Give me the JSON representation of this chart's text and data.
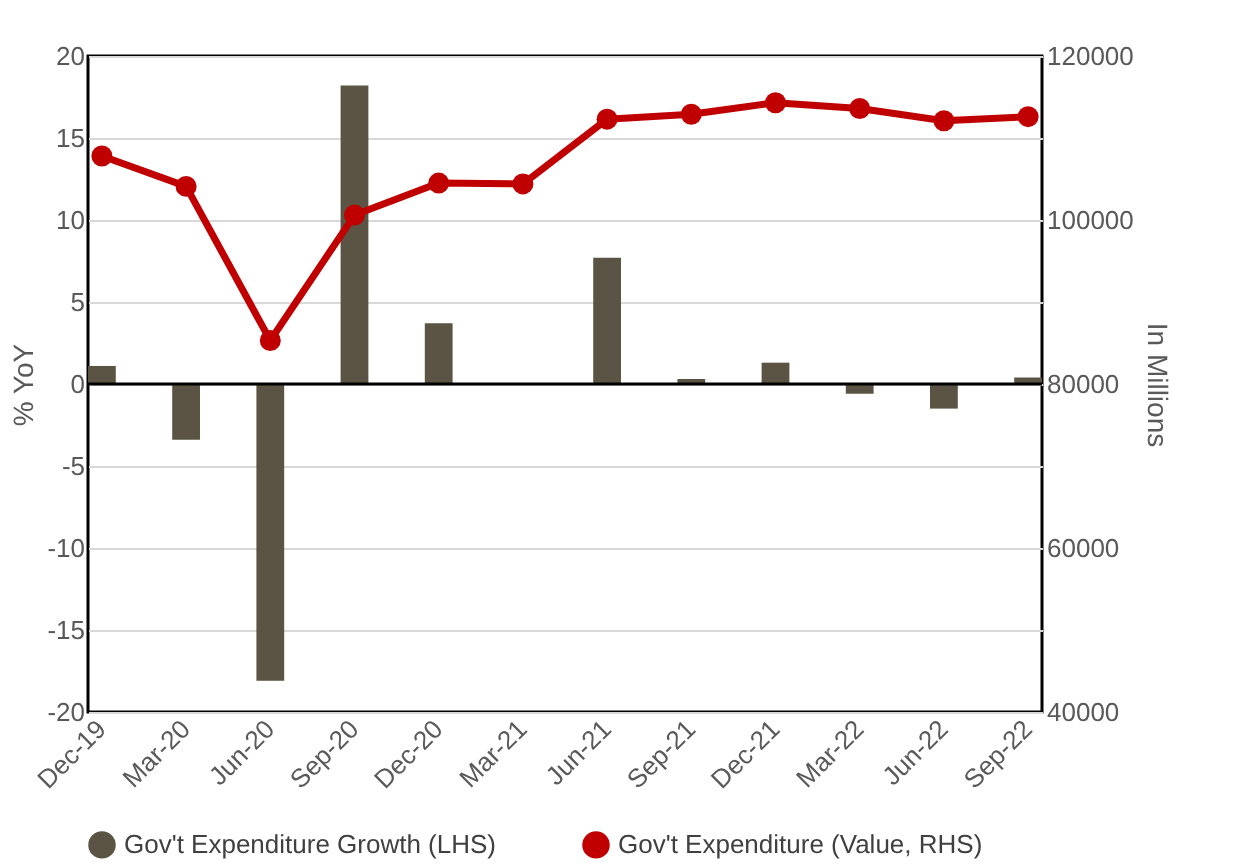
{
  "chart_data": {
    "type": "bar",
    "categories": [
      "Dec-19",
      "Mar-20",
      "Jun-20",
      "Sep-20",
      "Dec-20",
      "Mar-21",
      "Jun-21",
      "Sep-21",
      "Dec-21",
      "Mar-22",
      "Jun-22",
      "Sep-22"
    ],
    "series": [
      {
        "name": "Gov't Expenditure Growth (LHS)",
        "color": "#5b5444",
        "values": [
          1.1,
          -3.4,
          -18.1,
          18.2,
          3.7,
          0,
          7.7,
          0.3,
          1.3,
          -0.6,
          -1.5,
          0.4
        ]
      },
      {
        "name": "Gov't Expenditure (Value, RHS)",
        "type": "line",
        "axis": "y2",
        "color": "#c00000",
        "values": [
          107800,
          104100,
          85300,
          100600,
          104500,
          104400,
          112300,
          112900,
          114300,
          113600,
          112100,
          112600
        ]
      }
    ],
    "ylabel": "% YoY",
    "y2label": "In Millions",
    "ylim": [
      -20,
      20
    ],
    "yticks": [
      -20,
      -15,
      -10,
      -5,
      0,
      5,
      10,
      15,
      20
    ],
    "y2lim": [
      40000,
      120000
    ],
    "y2ticks": [
      40000,
      60000,
      80000,
      100000,
      120000
    ],
    "grid": "y",
    "legend": "bottom",
    "marker": "circle"
  }
}
